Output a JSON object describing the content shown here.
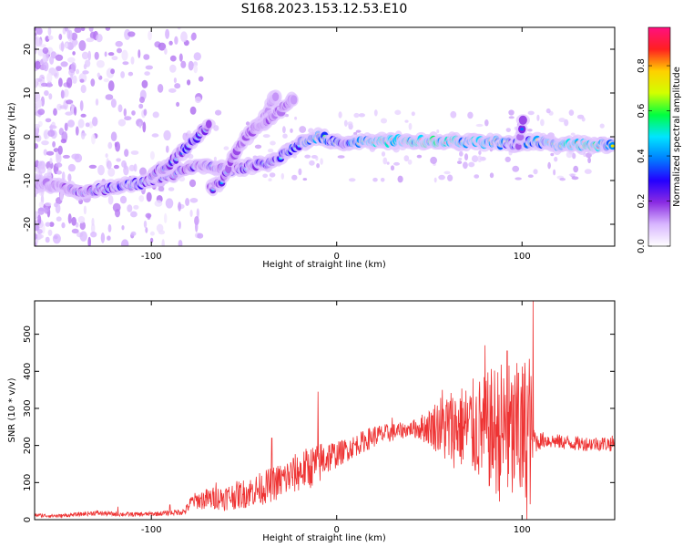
{
  "title": "S168.2023.153.12.53.E10",
  "chart_data": [
    {
      "type": "heatmap",
      "xlabel": "Height of straight line (km)",
      "ylabel": "Frequency (Hz)",
      "xlim": [
        -163,
        150
      ],
      "ylim": [
        -25,
        25
      ],
      "xticks": [
        -100,
        0,
        100
      ],
      "xtick_labels": [
        "-100",
        "0",
        "100"
      ],
      "yticks": [
        -20,
        -10,
        0,
        10,
        20
      ],
      "ytick_labels": [
        "-20",
        "-10",
        "0",
        "10",
        "20"
      ],
      "colorbar": {
        "label": "Normalized spectral amplitude",
        "range": [
          0,
          0.97
        ],
        "ticks": [
          0,
          0.2,
          0.4,
          0.6,
          0.8
        ],
        "tick_labels": [
          "0.0",
          "0.2",
          "0.4",
          "0.6",
          "0.8"
        ],
        "colors": [
          "#ffffff",
          "#d8b6ff",
          "#8a2be2",
          "#2400ff",
          "#0080ff",
          "#00e5ff",
          "#00ff40",
          "#d2ff00",
          "#ffd000",
          "#ff2020",
          "#ff1080"
        ]
      },
      "ridges": [
        {
          "name": "main_track",
          "points": [
            [
              -163,
              -10.5
            ],
            [
              -150,
              -11.5
            ],
            [
              -138,
              -12.5
            ],
            [
              -125,
              -12
            ],
            [
              -112,
              -11
            ],
            [
              -100,
              -10
            ],
            [
              -88,
              -8.5
            ],
            [
              -75,
              -6.5
            ],
            [
              -62,
              -7.5
            ],
            [
              -50,
              -7
            ],
            [
              -38,
              -6
            ],
            [
              -28,
              -4
            ],
            [
              -18,
              -1
            ],
            [
              -10,
              0
            ],
            [
              -2,
              -1
            ],
            [
              5,
              -1.5
            ],
            [
              12,
              -1
            ],
            [
              30,
              -1
            ],
            [
              50,
              -1
            ],
            [
              70,
              -1.3
            ],
            [
              85,
              -1.2
            ],
            [
              95,
              -1.8
            ],
            [
              100,
              -1.5
            ],
            [
              105,
              -1
            ],
            [
              120,
              -1.8
            ],
            [
              140,
              -1.8
            ],
            [
              150,
              -1.8
            ]
          ],
          "amplitudes": [
            0.2,
            0.3,
            0.45,
            0.45,
            0.5,
            0.45,
            0.45,
            0.4,
            0.45,
            0.45,
            0.5,
            0.55,
            0.6,
            0.8,
            0.6,
            0.55,
            0.8,
            0.9,
            0.95,
            0.85,
            0.8,
            0.55,
            0.6,
            0.7,
            0.85,
            0.92,
            0.7
          ]
        },
        {
          "name": "branch_a",
          "points": [
            [
              -100,
              -9
            ],
            [
              -90,
              -6
            ],
            [
              -80,
              -2
            ],
            [
              -73,
              1
            ],
            [
              -68,
              3
            ]
          ],
          "amplitudes": [
            0.4,
            0.45,
            0.5,
            0.45,
            0.35
          ]
        },
        {
          "name": "branch_b",
          "points": [
            [
              -68,
              -12
            ],
            [
              -62,
              -10
            ],
            [
              -55,
              -4
            ],
            [
              -48,
              0
            ],
            [
              -40,
              4
            ],
            [
              -35,
              8
            ],
            [
              -32,
              10
            ]
          ],
          "amplitudes": [
            0.35,
            0.4,
            0.35,
            0.3,
            0.3,
            0.25,
            0.2
          ]
        },
        {
          "name": "branch_c",
          "points": [
            [
              -50,
              0
            ],
            [
              -40,
              3
            ],
            [
              -30,
              6
            ],
            [
              -22,
              9
            ]
          ],
          "amplitudes": [
            0.3,
            0.3,
            0.3,
            0.25
          ]
        },
        {
          "name": "spur_100",
          "points": [
            [
              98,
              -2
            ],
            [
              100,
              2
            ],
            [
              101,
              6
            ]
          ],
          "amplitudes": [
            0.3,
            0.35,
            0.3
          ]
        }
      ]
    },
    {
      "type": "line",
      "xlabel": "Height of straight line (km)",
      "ylabel": "SNR (10 * v/v)",
      "xlim": [
        -163,
        150
      ],
      "ylim": [
        0,
        590
      ],
      "xticks": [
        -100,
        0,
        100
      ],
      "xtick_labels": [
        "-100",
        "0",
        "100"
      ],
      "yticks": [
        0,
        100,
        200,
        300,
        400,
        500
      ],
      "ytick_labels": [
        "0",
        "100",
        "200",
        "300",
        "400",
        "500"
      ],
      "color": "#ee3333",
      "series": [
        {
          "x": [
            -163,
            -150,
            -140,
            -130,
            -120,
            -110,
            -100,
            -90,
            -82,
            -78,
            -70,
            -60,
            -50,
            -40,
            -30,
            -20,
            -10,
            -5,
            0,
            10,
            20,
            30,
            40,
            50,
            55,
            60,
            65,
            70,
            75,
            80,
            85,
            90,
            95,
            100,
            104,
            106,
            108,
            112,
            120,
            130,
            140,
            150
          ],
          "y": [
            12,
            10,
            14,
            18,
            15,
            14,
            15,
            18,
            22,
            50,
            55,
            60,
            70,
            85,
            105,
            130,
            150,
            170,
            175,
            200,
            225,
            235,
            245,
            250,
            255,
            245,
            250,
            250,
            245,
            240,
            240,
            235,
            220,
            220,
            240,
            220,
            210,
            215,
            210,
            205,
            205,
            205
          ],
          "variability": [
            5,
            5,
            5,
            7,
            6,
            6,
            6,
            7,
            10,
            20,
            30,
            35,
            40,
            45,
            50,
            55,
            60,
            50,
            35,
            30,
            30,
            25,
            20,
            50,
            80,
            110,
            110,
            120,
            140,
            150,
            180,
            200,
            200,
            210,
            250,
            60,
            25,
            22,
            20,
            20,
            20,
            22
          ]
        }
      ],
      "peaks": [
        [
          -118,
          35
        ],
        [
          -90,
          40
        ],
        [
          -65,
          100
        ],
        [
          -35,
          220
        ],
        [
          -10,
          345
        ],
        [
          30,
          275
        ],
        [
          57,
          350
        ],
        [
          67,
          320
        ],
        [
          80,
          470
        ],
        [
          92,
          455
        ],
        [
          98,
          395
        ],
        [
          106,
          590
        ]
      ]
    }
  ]
}
